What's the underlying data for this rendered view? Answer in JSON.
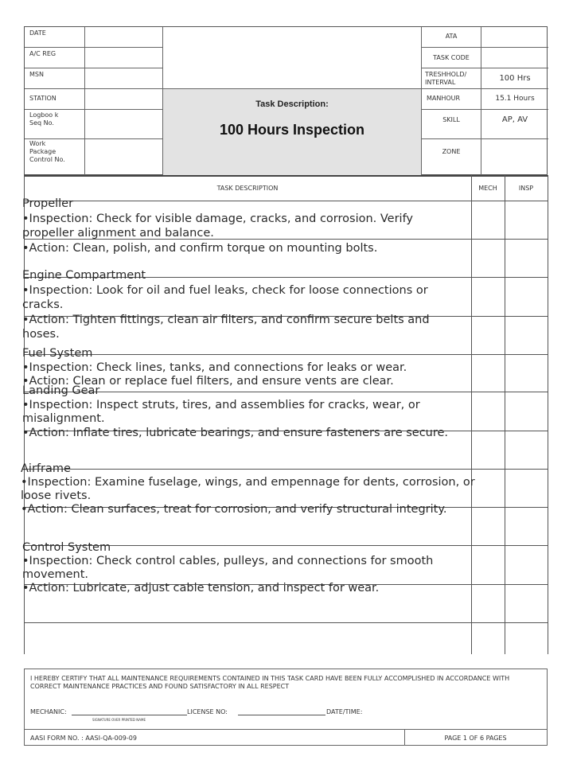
{
  "header": {
    "left_labels": [
      "DATE",
      "A/C REG",
      "MSN",
      "STATION",
      "Logboo k Seq No.",
      "Work Package Control No."
    ],
    "right": [
      {
        "label": "ATA",
        "value": ""
      },
      {
        "label": "TASK CODE",
        "value": ""
      },
      {
        "label": "TRESHHOLD/ INTERVAL",
        "value": "100 Hrs"
      },
      {
        "label": "MANHOUR",
        "value": "15.1 Hours"
      },
      {
        "label": "SKILL",
        "value": "AP, AV"
      },
      {
        "label": "ZONE",
        "value": ""
      }
    ],
    "task_description_label": "Task Description:",
    "task_title": "100 Hours Inspection"
  },
  "table": {
    "columns": [
      "TASK DESCRIPTION",
      "MECH",
      "INSP"
    ],
    "sections": [
      {
        "title": "Propeller",
        "lines": [
          "•Inspection: Check for visible damage, cracks, and corrosion. Verify",
          "propeller alignment and balance.",
          "•Action: Clean, polish, and confirm torque on mounting bolts."
        ]
      },
      {
        "title": "Engine Compartment",
        "lines": [
          "•Inspection: Look for oil and fuel leaks, check for loose connections or",
          "cracks.",
          "•Action: Tighten fittings, clean air filters, and confirm secure belts and",
          "hoses."
        ]
      },
      {
        "title": "Fuel System",
        "lines": [
          "•Inspection: Check lines, tanks, and connections for leaks or wear.",
          "•Action: Clean or replace fuel filters, and ensure vents are clear."
        ]
      },
      {
        "title": "Landing Gear",
        "lines": [
          "•Inspection: Inspect struts, tires, and assemblies for cracks, wear, or",
          "misalignment.",
          "•Action: Inflate tires, lubricate bearings, and ensure fasteners are secure."
        ]
      },
      {
        "title": "Airframe",
        "lines": [
          "•Inspection: Examine fuselage, wings, and empennage for dents, corrosion, or",
          "loose rivets.",
          "•Action: Clean surfaces, treat for corrosion, and verify structural integrity."
        ]
      },
      {
        "title": "Control System",
        "lines": [
          "•Inspection: Check control cables, pulleys, and connections for smooth",
          "movement.",
          "•Action: Lubricate, adjust cable tension, and inspect for wear."
        ]
      }
    ]
  },
  "footer": {
    "certify": "I HEREBY CERTIFY THAT ALL MAINTENANCE REQUIREMENTS CONTAINED IN THIS TASK CARD HAVE BEEN FULLY ACCOMPLISHED IN ACCORDANCE WITH CORRECT MAINTENANCE PRACTICES AND FOUND SATISFACTORY IN ALL RESPECT",
    "mechanic": "MECHANIC:",
    "signature_hint": "SIGNATURE OVER PRINTED NAME",
    "license": "LICENSE NO:",
    "datetime": "DATE/TIME:",
    "form_no": "AASI FORM NO. : AASI-QA-009-09",
    "page": "PAGE 1 OF 6 PAGES"
  }
}
